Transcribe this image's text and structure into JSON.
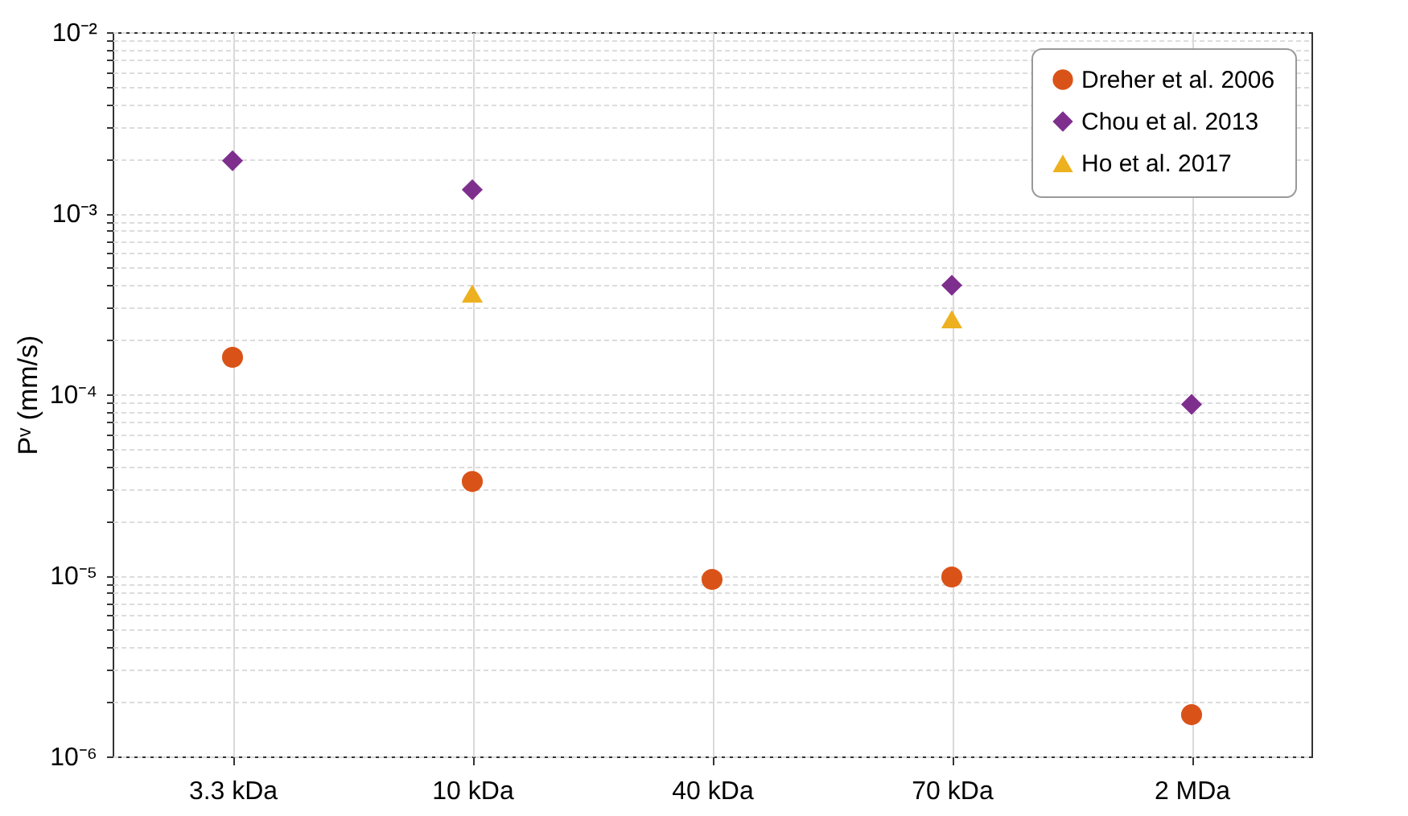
{
  "chart_data": {
    "type": "scatter",
    "ylabel": "Pᵛ (mm/s)",
    "categories": [
      "3.3 kDa",
      "10 kDa",
      "40 kDa",
      "70 kDa",
      "2 MDa"
    ],
    "log": "y",
    "ylim": [
      1e-06,
      0.01
    ],
    "yticks": [
      {
        "value": 1e-06,
        "label": "10⁻⁶"
      },
      {
        "value": 2e-06,
        "label": null
      },
      {
        "value": 3e-06,
        "label": null
      },
      {
        "value": 4e-06,
        "label": null
      },
      {
        "value": 5e-06,
        "label": null
      },
      {
        "value": 6e-06,
        "label": null
      },
      {
        "value": 7e-06,
        "label": null
      },
      {
        "value": 8e-06,
        "label": null
      },
      {
        "value": 9e-06,
        "label": null
      },
      {
        "value": 1e-05,
        "label": "10⁻⁵"
      },
      {
        "value": 2e-05,
        "label": null
      },
      {
        "value": 3e-05,
        "label": null
      },
      {
        "value": 4e-05,
        "label": null
      },
      {
        "value": 5e-05,
        "label": null
      },
      {
        "value": 6e-05,
        "label": null
      },
      {
        "value": 7e-05,
        "label": null
      },
      {
        "value": 8e-05,
        "label": null
      },
      {
        "value": 9e-05,
        "label": null
      },
      {
        "value": 0.0001,
        "label": "10⁻⁴"
      },
      {
        "value": 0.0002,
        "label": null
      },
      {
        "value": 0.0003,
        "label": null
      },
      {
        "value": 0.0004,
        "label": null
      },
      {
        "value": 0.0005,
        "label": null
      },
      {
        "value": 0.0006,
        "label": null
      },
      {
        "value": 0.0007,
        "label": null
      },
      {
        "value": 0.0008,
        "label": null
      },
      {
        "value": 0.0009,
        "label": null
      },
      {
        "value": 0.001,
        "label": "10⁻³"
      },
      {
        "value": 0.002,
        "label": null
      },
      {
        "value": 0.003,
        "label": null
      },
      {
        "value": 0.004,
        "label": null
      },
      {
        "value": 0.005,
        "label": null
      },
      {
        "value": 0.006,
        "label": null
      },
      {
        "value": 0.007,
        "label": null
      },
      {
        "value": 0.008,
        "label": null
      },
      {
        "value": 0.009,
        "label": null
      },
      {
        "value": 0.01,
        "label": "10⁻²"
      }
    ],
    "grid": true,
    "legend": "top right",
    "series": [
      {
        "name": "Dreher et al. 2006",
        "color": "#d95319",
        "marker": "circle",
        "values": [
          0.00016,
          3.3e-05,
          9.5e-06,
          9.8e-06,
          1.7e-06
        ]
      },
      {
        "name": "Chou et al. 2013",
        "color": "#7e2f8e",
        "marker": "diamond",
        "values": [
          0.00195,
          0.00135,
          null,
          0.0004,
          8.8e-05
        ]
      },
      {
        "name": "Ho et al. 2017",
        "color": "#edb120",
        "marker": "triangle",
        "values": [
          null,
          0.00036,
          null,
          0.00026,
          null
        ]
      }
    ]
  }
}
